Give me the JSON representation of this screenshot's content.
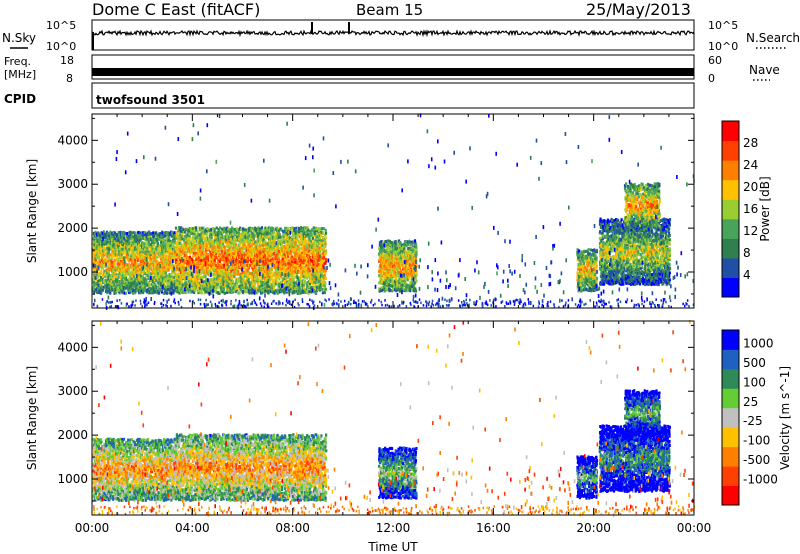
{
  "header": {
    "station": "Dome C East (fitACF)",
    "beam": "Beam 15",
    "date": "25/May/2013"
  },
  "nsky_panel": {
    "left_label": "N.Sky",
    "right_label": "N.Search",
    "left_ticks": [
      "10^5",
      "10^0"
    ],
    "right_ticks": [
      "10^5",
      "10^0"
    ]
  },
  "freq_panel": {
    "left_label_line1": "Freq.",
    "left_label_line2": "[MHz]",
    "right_label": "Nave",
    "left_ticks": [
      "18",
      "8"
    ],
    "right_ticks": [
      "60",
      "0"
    ]
  },
  "cpid_panel": {
    "label": "CPID",
    "value": "twofsound 3501"
  },
  "colors": {
    "power_scale": [
      "#0000ff",
      "#1f4fa6",
      "#2f7f4f",
      "#49a35a",
      "#9acd32",
      "#ffc000",
      "#ff8000",
      "#ff4000",
      "#ff0000"
    ],
    "velocity_scale": [
      "#0000ff",
      "#2060c0",
      "#2e8b57",
      "#66cc33",
      "#c0c0c0",
      "#ffc000",
      "#ff8000",
      "#ff4000",
      "#ff0000"
    ]
  },
  "chart_data": [
    {
      "type": "heatmap",
      "name": "power-panel",
      "ylabel": "Slant Range [km]",
      "ylim": [
        180,
        4600
      ],
      "yticks": [
        1000,
        2000,
        3000,
        4000
      ],
      "xlim": [
        0,
        24
      ],
      "colorbar": {
        "label": "Power [dB]",
        "range": [
          0,
          32
        ],
        "ticks": [
          4,
          8,
          12,
          16,
          20,
          24,
          28
        ]
      },
      "regions": [
        {
          "t0": 0.0,
          "t1": 3.3,
          "r0": 500,
          "r1": 1900,
          "level": 0.68
        },
        {
          "t0": 3.3,
          "t1": 9.3,
          "r0": 500,
          "r1": 2000,
          "level": 0.78
        },
        {
          "t0": 11.4,
          "t1": 12.9,
          "r0": 550,
          "r1": 1700,
          "level": 0.72
        },
        {
          "t0": 19.3,
          "t1": 20.1,
          "r0": 550,
          "r1": 1500,
          "level": 0.7
        },
        {
          "t0": 20.2,
          "t1": 23.0,
          "r0": 700,
          "r1": 2200,
          "level": 0.55
        },
        {
          "t0": 21.2,
          "t1": 22.6,
          "r0": 2000,
          "r1": 3000,
          "level": 0.72
        }
      ]
    },
    {
      "type": "heatmap",
      "name": "velocity-panel",
      "ylabel": "Slant Range [km]",
      "ylim": [
        180,
        4600
      ],
      "yticks": [
        1000,
        2000,
        3000,
        4000
      ],
      "xlabel": "Time UT",
      "xticks": [
        "00:00",
        "04:00",
        "08:00",
        "12:00",
        "16:00",
        "20:00",
        "00:00"
      ],
      "xlim": [
        0,
        24
      ],
      "colorbar": {
        "label": "Velocity [m s^-1]",
        "ticks": [
          "1000",
          "500",
          "100",
          "25",
          "-25",
          "-100",
          "-500",
          "-1000"
        ]
      },
      "regions": [
        {
          "t0": 0.0,
          "t1": 3.3,
          "r0": 500,
          "r1": 1900,
          "level": 0.7
        },
        {
          "t0": 3.3,
          "t1": 9.3,
          "r0": 500,
          "r1": 2000,
          "level": 0.72
        },
        {
          "t0": 11.4,
          "t1": 12.9,
          "r0": 550,
          "r1": 1700,
          "level": 0.45
        },
        {
          "t0": 19.3,
          "t1": 20.1,
          "r0": 550,
          "r1": 1500,
          "level": 0.3
        },
        {
          "t0": 20.2,
          "t1": 23.0,
          "r0": 700,
          "r1": 2200,
          "level": 0.3
        },
        {
          "t0": 21.2,
          "t1": 22.6,
          "r0": 2000,
          "r1": 3000,
          "level": 0.35
        }
      ]
    }
  ]
}
